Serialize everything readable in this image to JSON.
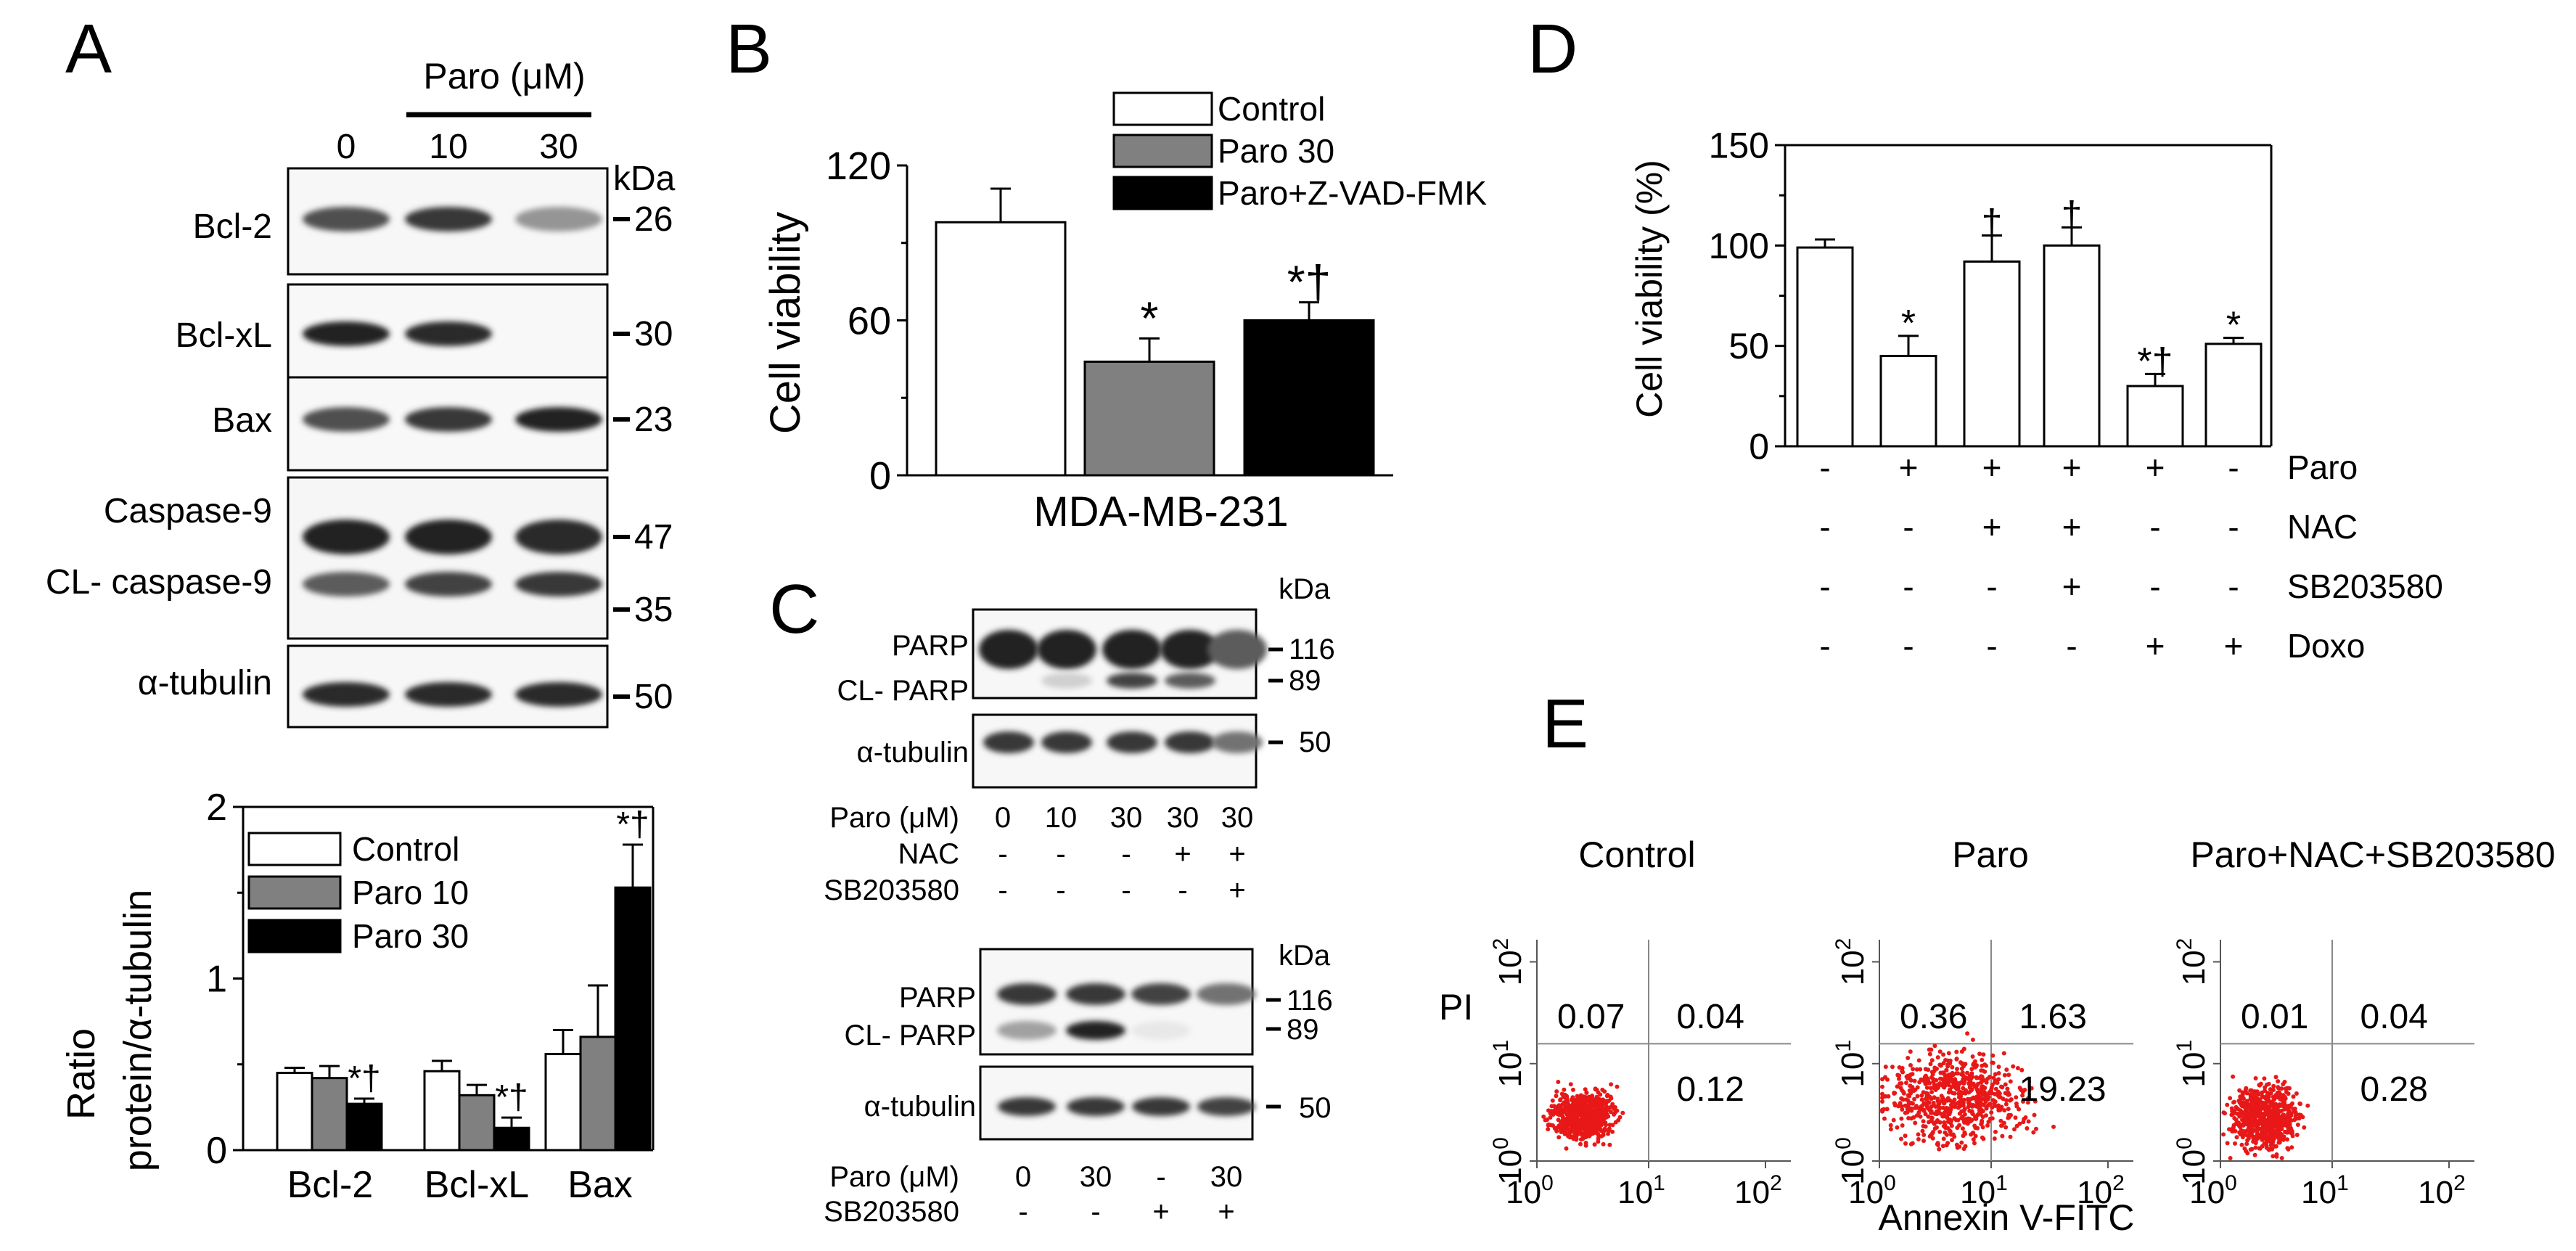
{
  "panels": {
    "A": {
      "letter": "A",
      "blot": {
        "treatment_label": "Paro (μM)",
        "doses": [
          "0",
          "10",
          "30"
        ],
        "kda_label": "kDa",
        "rows": [
          {
            "label": "Bcl-2",
            "kda": "26",
            "bands": [
              0.75,
              0.85,
              0.45
            ]
          },
          {
            "label": "Bcl-xL",
            "kda": "30",
            "bands": [
              0.95,
              0.9,
              0.0
            ]
          },
          {
            "label": "Bax",
            "kda": "23",
            "bands": [
              0.75,
              0.85,
              0.95
            ]
          },
          {
            "label": "Caspase-9",
            "label2": "CL- caspase-9",
            "kda": "47",
            "kda2": "35",
            "bands": [
              0.95,
              0.95,
              0.9
            ],
            "bands2": [
              0.7,
              0.8,
              0.85
            ]
          },
          {
            "label": "α-tubulin",
            "kda": "50",
            "bands": [
              0.9,
              0.9,
              0.9
            ]
          }
        ]
      }
    },
    "B": {
      "letter": "B"
    },
    "C": {
      "letter": "C",
      "blot1": {
        "kda_label": "kDa",
        "rows": [
          {
            "label": "PARP",
            "label2": "CL- PARP",
            "kda": "116",
            "kda2": "89",
            "bands": [
              0.95,
              0.95,
              0.95,
              0.95,
              0.7
            ],
            "bands2": [
              0.0,
              0.2,
              0.8,
              0.7,
              0.0
            ]
          },
          {
            "label": "α-tubulin",
            "kda": "50",
            "bands": [
              0.85,
              0.85,
              0.85,
              0.85,
              0.6
            ]
          }
        ],
        "conditions": [
          {
            "label": "Paro (μM)",
            "values": [
              "0",
              "10",
              "30",
              "30",
              "30"
            ]
          },
          {
            "label": "NAC",
            "values": [
              "-",
              "-",
              "-",
              "+",
              "+"
            ]
          },
          {
            "label": "SB203580",
            "values": [
              "-",
              "-",
              "-",
              "-",
              "+"
            ]
          }
        ]
      },
      "blot2": {
        "kda_label": "kDa",
        "rows": [
          {
            "label": "PARP",
            "label2": "CL- PARP",
            "kda": "116",
            "kda2": "89",
            "bands": [
              0.85,
              0.85,
              0.8,
              0.6
            ],
            "bands2": [
              0.4,
              0.95,
              0.1,
              0.0
            ]
          },
          {
            "label": "α-tubulin",
            "kda": "50",
            "bands": [
              0.85,
              0.85,
              0.85,
              0.8
            ]
          }
        ],
        "conditions": [
          {
            "label": "Paro (μM)",
            "values": [
              "0",
              "30",
              "-",
              "30"
            ]
          },
          {
            "label": "SB203580",
            "values": [
              "-",
              "-",
              "+",
              "+"
            ]
          }
        ]
      }
    },
    "D": {
      "letter": "D",
      "conditions": [
        {
          "label": "Paro",
          "values": [
            "-",
            "+",
            "+",
            "+",
            "+",
            "-"
          ]
        },
        {
          "label": "NAC",
          "values": [
            "-",
            "-",
            "+",
            "+",
            "-",
            "-"
          ]
        },
        {
          "label": "SB203580",
          "values": [
            "-",
            "-",
            "-",
            "+",
            "-",
            "-"
          ]
        },
        {
          "label": "Doxo",
          "values": [
            "-",
            "-",
            "-",
            "-",
            "+",
            "+"
          ]
        }
      ]
    },
    "E": {
      "letter": "E",
      "xlabel": "Annexin V-FITC",
      "ylabel": "PI",
      "ticks": [
        {
          "base": "10",
          "exp": "0"
        },
        {
          "base": "10",
          "exp": "1"
        },
        {
          "base": "10",
          "exp": "2"
        }
      ],
      "plots": [
        {
          "title": "Control",
          "q_ul": "0.07",
          "q_ur": "0.04",
          "q_lr": "0.12",
          "cloud": [
            0.35,
            0.35
          ]
        },
        {
          "title": "Paro",
          "q_ul": "0.36",
          "q_ur": "1.63",
          "q_lr": "19.23",
          "cloud": [
            0.72,
            0.55
          ]
        },
        {
          "title": "Paro+NAC+SB203580",
          "q_ul": "0.01",
          "q_ur": "0.04",
          "q_lr": "0.28",
          "cloud": [
            0.38,
            0.45
          ]
        }
      ]
    }
  },
  "chart_data": [
    {
      "id": "A-quant",
      "type": "bar",
      "categories": [
        "Bcl-2",
        "Bcl-xL",
        "Bax"
      ],
      "series": [
        {
          "name": "Control",
          "values": [
            0.45,
            0.46,
            0.56
          ],
          "errors": [
            0.03,
            0.06,
            0.14
          ],
          "color": "#ffffff"
        },
        {
          "name": "Paro 10",
          "values": [
            0.42,
            0.32,
            0.66
          ],
          "errors": [
            0.07,
            0.06,
            0.3
          ],
          "color": "#808080"
        },
        {
          "name": "Paro 30",
          "values": [
            0.27,
            0.13,
            1.53
          ],
          "errors": [
            0.03,
            0.06,
            0.25
          ],
          "color": "#000000"
        }
      ],
      "annotations": [
        [
          "",
          "",
          "*†"
        ],
        [
          "",
          "",
          "*†"
        ],
        [
          "",
          "",
          "*†"
        ]
      ],
      "ylabel": "Ratio",
      "ylabel2": "protein/α-tubulin",
      "yticks": [
        "0",
        "1",
        "2"
      ],
      "ylim": [
        0,
        2
      ],
      "legend": "top-left"
    },
    {
      "id": "B",
      "type": "bar",
      "categories": [
        "Control",
        "Paro 30",
        "Paro+Z-VAD-FMK"
      ],
      "values": [
        98,
        44,
        60
      ],
      "errors": [
        13,
        9,
        7
      ],
      "colors": [
        "#ffffff",
        "#808080",
        "#000000"
      ],
      "annotations": [
        "",
        "*",
        "*†"
      ],
      "xlabel": "MDA-MB-231",
      "ylabel": "Cell viability",
      "yticks": [
        "0",
        "60",
        "120"
      ],
      "ylim": [
        0,
        120
      ],
      "legend": "top"
    },
    {
      "id": "D",
      "type": "bar",
      "values": [
        99,
        45,
        92,
        100,
        30,
        51
      ],
      "errors": [
        4,
        10,
        13,
        9,
        6,
        3
      ],
      "annotations": [
        "",
        "*",
        "†",
        "†",
        "*†",
        "*"
      ],
      "ylabel": "Cell viability (%)",
      "yticks": [
        "0",
        "50",
        "100",
        "150"
      ],
      "ylim": [
        0,
        150
      ]
    }
  ]
}
